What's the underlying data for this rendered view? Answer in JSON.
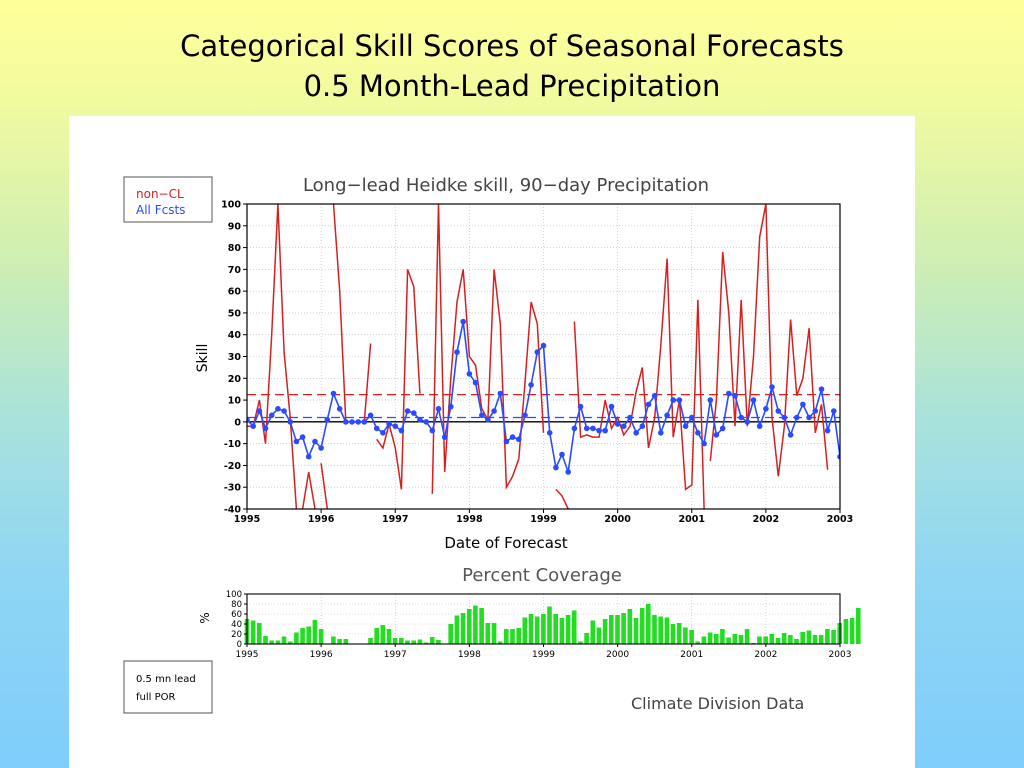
{
  "slide": {
    "title_line1": "Categorical Skill Scores of Seasonal Forecasts",
    "title_line2": "0.5 Month-Lead Precipitation"
  },
  "legend": {
    "item1": "non−CL",
    "item2": "All Fcsts",
    "color1": "#d62020",
    "color2": "#2a4bff"
  },
  "lead_box": {
    "line1": "0.5  mn  lead",
    "line2": "full  POR"
  },
  "footer": {
    "source": "Climate  Division  Data"
  },
  "chart_data": [
    {
      "type": "line",
      "title": "Long−lead  Heidke  skill,  90−day  Precipitation",
      "xlabel": "Date  of  Forecast",
      "ylabel": "Skill",
      "xlim": [
        1995.0,
        2003.0
      ],
      "ylim": [
        -40,
        100
      ],
      "yticks": [
        -40,
        -30,
        -20,
        -10,
        0,
        10,
        20,
        30,
        40,
        50,
        60,
        70,
        80,
        90,
        100
      ],
      "xticks": [
        "1995",
        "1996",
        "1997",
        "1998",
        "1999",
        "2000",
        "2001",
        "2002",
        "2003"
      ],
      "grid": true,
      "reference_lines": [
        {
          "name": "non-CL mean",
          "value": 12.5,
          "color": "#d62020",
          "style": "dashed"
        },
        {
          "name": "All Fcsts mean",
          "value": 2.0,
          "color": "#2a4bff",
          "style": "dashed"
        },
        {
          "name": "zero",
          "value": 0,
          "color": "#000000",
          "style": "solid"
        }
      ],
      "series": [
        {
          "name": "non−CL",
          "color": "#d62020",
          "marker": "none",
          "segments": [
            [
              [
                1995.0,
                -2
              ],
              [
                1995.083,
                -2
              ],
              [
                1995.167,
                10
              ],
              [
                1995.25,
                -10
              ],
              [
                1995.333,
                40
              ],
              [
                1995.417,
                100
              ],
              [
                1995.5,
                32
              ],
              [
                1995.583,
                2
              ],
              [
                1995.667,
                -40
              ]
            ],
            [
              [
                1995.75,
                -40
              ],
              [
                1995.833,
                -23
              ],
              [
                1995.917,
                -40
              ]
            ],
            [
              [
                1996.0,
                -19
              ],
              [
                1996.083,
                -40
              ]
            ],
            [
              [
                1996.167,
                100
              ],
              [
                1996.25,
                60
              ],
              [
                1996.333,
                0
              ],
              [
                1996.417,
                0
              ],
              [
                1996.5,
                0
              ],
              [
                1996.583,
                0
              ],
              [
                1996.667,
                36
              ]
            ],
            [
              [
                1996.75,
                -8
              ],
              [
                1996.833,
                -12
              ],
              [
                1996.917,
                -1
              ],
              [
                1997.0,
                -12
              ],
              [
                1997.083,
                -31
              ],
              [
                1997.167,
                70
              ],
              [
                1997.25,
                62
              ],
              [
                1997.333,
                13
              ]
            ],
            [
              [
                1997.5,
                -33
              ],
              [
                1997.583,
                100
              ],
              [
                1997.667,
                -23
              ],
              [
                1997.75,
                20
              ],
              [
                1997.833,
                55
              ],
              [
                1997.917,
                70
              ],
              [
                1998.0,
                30
              ],
              [
                1998.083,
                26
              ],
              [
                1998.167,
                6
              ],
              [
                1998.25,
                1
              ],
              [
                1998.333,
                70
              ],
              [
                1998.417,
                45
              ],
              [
                1998.5,
                -30
              ],
              [
                1998.583,
                -25
              ],
              [
                1998.667,
                -17
              ],
              [
                1998.75,
                18
              ],
              [
                1998.833,
                55
              ],
              [
                1998.917,
                45
              ],
              [
                1999.0,
                -5
              ]
            ],
            [
              [
                1999.167,
                -31
              ],
              [
                1999.25,
                -34
              ],
              [
                1999.333,
                -40
              ]
            ],
            [
              [
                1999.417,
                46
              ],
              [
                1999.5,
                -7
              ],
              [
                1999.583,
                -6
              ],
              [
                1999.667,
                -7
              ],
              [
                1999.75,
                -7
              ],
              [
                1999.833,
                10
              ],
              [
                1999.917,
                -3
              ],
              [
                2000.0,
                2
              ],
              [
                2000.083,
                -6
              ],
              [
                2000.167,
                -2
              ],
              [
                2000.25,
                14
              ],
              [
                2000.333,
                25
              ],
              [
                2000.417,
                -12
              ],
              [
                2000.5,
                2
              ],
              [
                2000.583,
                35
              ],
              [
                2000.667,
                75
              ],
              [
                2000.75,
                -7
              ],
              [
                2000.833,
                10
              ],
              [
                2000.917,
                -31
              ],
              [
                2001.0,
                -29
              ],
              [
                2001.083,
                56
              ],
              [
                2001.167,
                -40
              ]
            ],
            [
              [
                2001.25,
                -18
              ],
              [
                2001.333,
                10
              ],
              [
                2001.417,
                78
              ],
              [
                2001.5,
                50
              ],
              [
                2001.583,
                -2
              ],
              [
                2001.667,
                56
              ],
              [
                2001.75,
                -2
              ],
              [
                2001.833,
                30
              ],
              [
                2001.917,
                85
              ],
              [
                2002.0,
                100
              ],
              [
                2002.083,
                2
              ],
              [
                2002.167,
                -25
              ],
              [
                2002.25,
                -2
              ],
              [
                2002.333,
                47
              ],
              [
                2002.417,
                12
              ],
              [
                2002.5,
                20
              ],
              [
                2002.583,
                43
              ],
              [
                2002.667,
                -5
              ],
              [
                2002.75,
                8
              ],
              [
                2002.833,
                -22
              ]
            ]
          ]
        },
        {
          "name": "All Fcsts",
          "color": "#2a4bff",
          "marker": "dot",
          "segments": [
            [
              [
                1995.0,
                1
              ],
              [
                1995.083,
                -2
              ],
              [
                1995.167,
                5
              ],
              [
                1995.25,
                -3
              ],
              [
                1995.333,
                3
              ],
              [
                1995.417,
                6
              ],
              [
                1995.5,
                5
              ],
              [
                1995.583,
                0
              ],
              [
                1995.667,
                -9
              ],
              [
                1995.75,
                -7
              ],
              [
                1995.833,
                -16
              ],
              [
                1995.917,
                -9
              ],
              [
                1996.0,
                -12
              ],
              [
                1996.083,
                1
              ],
              [
                1996.167,
                13
              ],
              [
                1996.25,
                6
              ],
              [
                1996.333,
                0
              ],
              [
                1996.417,
                0
              ],
              [
                1996.5,
                0
              ],
              [
                1996.583,
                0
              ],
              [
                1996.667,
                3
              ],
              [
                1996.75,
                -3
              ],
              [
                1996.833,
                -5
              ],
              [
                1996.917,
                -1
              ],
              [
                1997.0,
                -2
              ],
              [
                1997.083,
                -4
              ],
              [
                1997.167,
                5
              ],
              [
                1997.25,
                4
              ],
              [
                1997.333,
                1
              ],
              [
                1997.417,
                0
              ],
              [
                1997.5,
                -4
              ],
              [
                1997.583,
                6
              ],
              [
                1997.667,
                -7
              ],
              [
                1997.75,
                7
              ],
              [
                1997.833,
                32
              ],
              [
                1997.917,
                46
              ],
              [
                1998.0,
                22
              ],
              [
                1998.083,
                18
              ],
              [
                1998.167,
                3
              ],
              [
                1998.25,
                1
              ],
              [
                1998.333,
                5
              ],
              [
                1998.417,
                13
              ],
              [
                1998.5,
                -9
              ],
              [
                1998.583,
                -7
              ],
              [
                1998.667,
                -8
              ],
              [
                1998.75,
                3
              ],
              [
                1998.833,
                17
              ],
              [
                1998.917,
                32
              ],
              [
                1999.0,
                35
              ],
              [
                1999.083,
                -5
              ],
              [
                1999.167,
                -21
              ],
              [
                1999.25,
                -15
              ],
              [
                1999.333,
                -23
              ],
              [
                1999.417,
                -3
              ],
              [
                1999.5,
                7
              ],
              [
                1999.583,
                -3
              ],
              [
                1999.667,
                -3
              ],
              [
                1999.75,
                -4
              ],
              [
                1999.833,
                -4
              ],
              [
                1999.917,
                7
              ],
              [
                2000.0,
                -1
              ],
              [
                2000.083,
                -2
              ],
              [
                2000.167,
                2
              ],
              [
                2000.25,
                -5
              ],
              [
                2000.333,
                -2
              ],
              [
                2000.417,
                8
              ],
              [
                2000.5,
                12
              ],
              [
                2000.583,
                -5
              ],
              [
                2000.667,
                3
              ],
              [
                2000.75,
                10
              ],
              [
                2000.833,
                10
              ],
              [
                2000.917,
                -2
              ],
              [
                2001.0,
                2
              ],
              [
                2001.083,
                -5
              ],
              [
                2001.167,
                -10
              ],
              [
                2001.25,
                10
              ],
              [
                2001.333,
                -6
              ],
              [
                2001.417,
                -3
              ],
              [
                2001.5,
                13
              ],
              [
                2001.583,
                12
              ],
              [
                2001.667,
                2
              ],
              [
                2001.75,
                0
              ],
              [
                2001.833,
                10
              ],
              [
                2001.917,
                -2
              ],
              [
                2002.0,
                6
              ],
              [
                2002.083,
                16
              ],
              [
                2002.167,
                5
              ],
              [
                2002.25,
                2
              ],
              [
                2002.333,
                -6
              ],
              [
                2002.417,
                2
              ],
              [
                2002.5,
                8
              ],
              [
                2002.583,
                2
              ],
              [
                2002.667,
                5
              ],
              [
                2002.75,
                15
              ],
              [
                2002.833,
                -4
              ],
              [
                2002.917,
                5
              ],
              [
                2003.0,
                -16
              ]
            ]
          ]
        }
      ]
    },
    {
      "type": "bar",
      "title": "Percent  Coverage",
      "ylabel": "%",
      "xlim": [
        1995.0,
        2003.0
      ],
      "ylim": [
        0,
        100
      ],
      "yticks": [
        0,
        20,
        40,
        60,
        80,
        100
      ],
      "xticks": [
        "1995",
        "1996",
        "1997",
        "1998",
        "1999",
        "2000",
        "2001",
        "2002",
        "2003"
      ],
      "grid": true,
      "color": "#22dd22",
      "x_start": 1995.0,
      "x_step": 0.0833,
      "values": [
        50,
        47,
        42,
        16,
        7,
        7,
        15,
        5,
        23,
        32,
        35,
        48,
        30,
        0,
        15,
        10,
        10,
        0,
        0,
        0,
        12,
        32,
        38,
        30,
        12,
        12,
        7,
        7,
        9,
        3,
        14,
        8,
        0,
        40,
        57,
        62,
        70,
        77,
        72,
        42,
        42,
        5,
        30,
        30,
        32,
        53,
        60,
        55,
        60,
        75,
        60,
        52,
        58,
        67,
        5,
        22,
        47,
        33,
        50,
        58,
        58,
        62,
        70,
        52,
        72,
        80,
        58,
        55,
        53,
        40,
        42,
        33,
        28,
        5,
        15,
        23,
        20,
        30,
        13,
        20,
        18,
        30,
        2,
        15,
        15,
        20,
        12,
        22,
        18,
        10,
        24,
        27,
        18,
        18,
        30,
        28,
        42,
        50,
        52,
        72
      ]
    }
  ]
}
